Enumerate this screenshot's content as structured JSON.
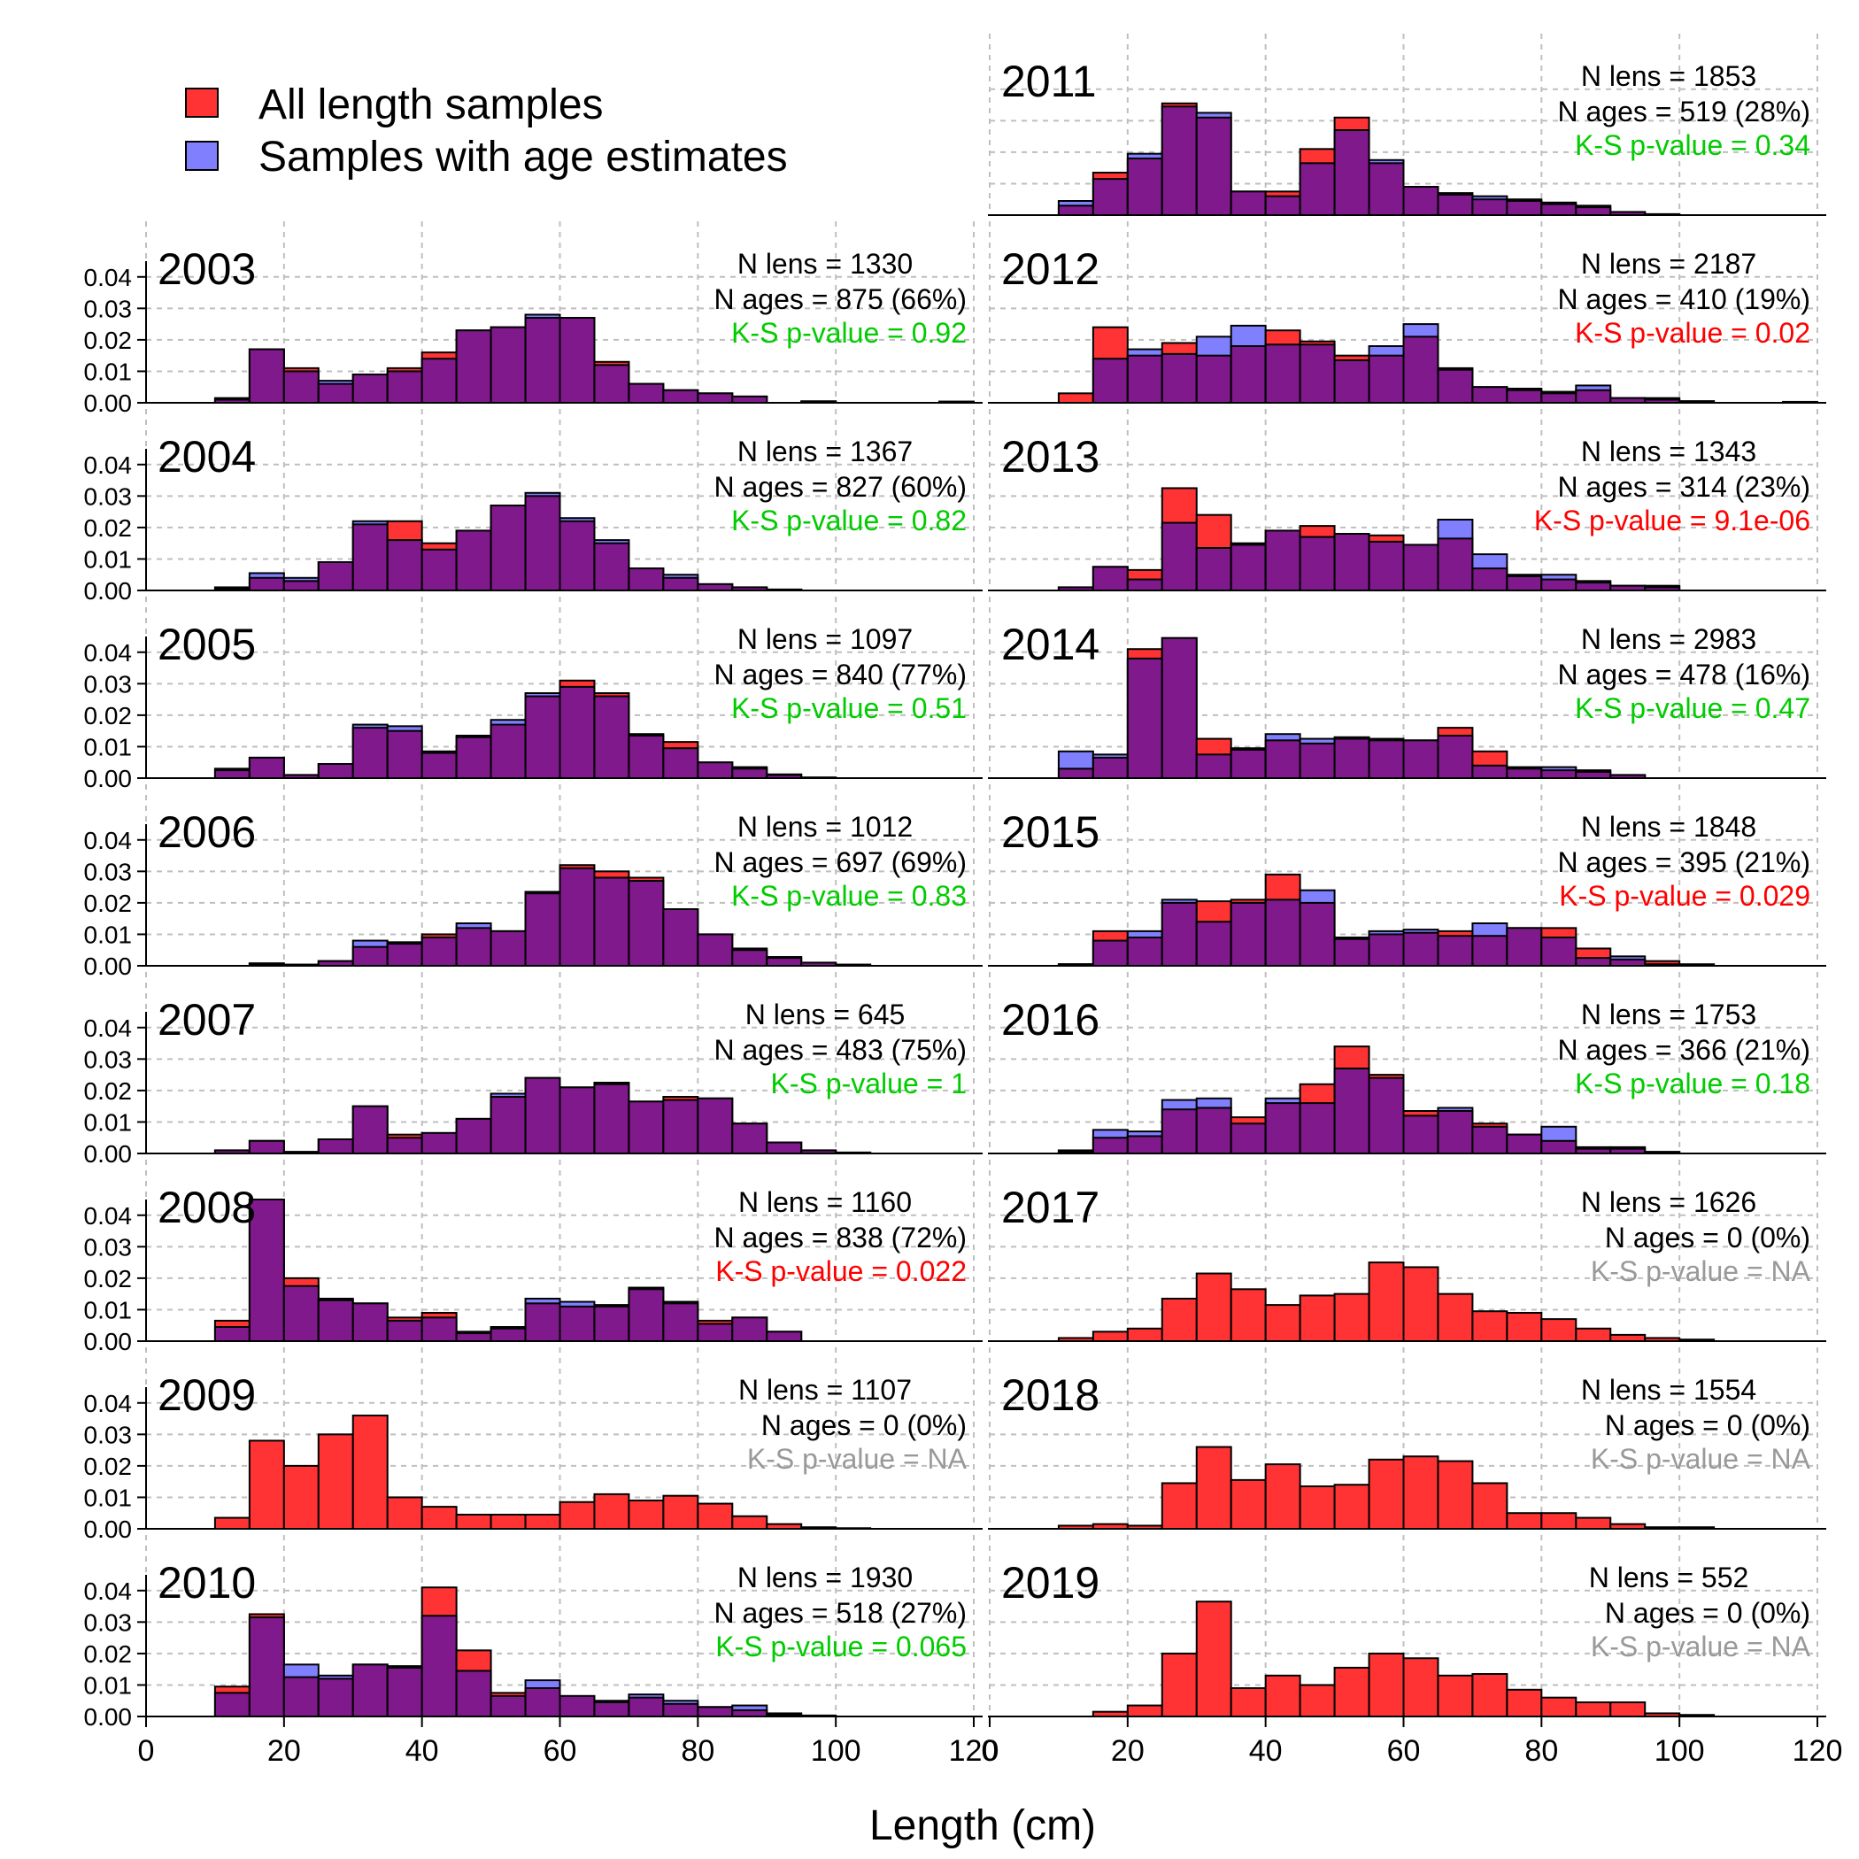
{
  "chart_data": {
    "type": "bar",
    "xlabel": "Length (cm)",
    "ylabel": "",
    "xlim": [
      0,
      120
    ],
    "ylim": [
      0,
      0.045
    ],
    "x_ticks": [
      0,
      20,
      40,
      60,
      80,
      100,
      120
    ],
    "y_ticks": [
      "0.00",
      "0.01",
      "0.02",
      "0.03",
      "0.04"
    ],
    "bin_start": 10,
    "bin_width": 5,
    "grid": true,
    "legend": {
      "placement": "top-left",
      "entries": [
        {
          "label": "All length samples",
          "color": "#ff3333"
        },
        {
          "label": "Samples with age estimates",
          "color": "#8080ff"
        }
      ]
    },
    "colors": {
      "all": "#ff3333",
      "aged": "#8080ff",
      "overlap": "#80198c",
      "ks_significant": "#ff0000",
      "ks_ok": "#00cc00",
      "ks_na": "#999999"
    },
    "panels": [
      {
        "year": "2003",
        "n_lens": "N lens = 1330",
        "n_ages": "N ages = 875 (66%)",
        "ks": "K-S p-value = 0.92",
        "ks_status": "ok",
        "all": [
          0.001,
          0.017,
          0.011,
          0.006,
          0.009,
          0.011,
          0.016,
          0.023,
          0.024,
          0.027,
          0.027,
          0.013,
          0.006,
          0.004,
          0.003,
          0.002,
          0,
          0.0005,
          0,
          0,
          0,
          0.0003
        ],
        "aged": [
          0.0015,
          0.017,
          0.01,
          0.007,
          0.009,
          0.01,
          0.014,
          0.023,
          0.024,
          0.028,
          0.027,
          0.012,
          0.006,
          0.004,
          0.003,
          0.002,
          0,
          0.0004,
          0,
          0,
          0,
          0.0004
        ]
      },
      {
        "year": "2004",
        "n_lens": "N lens = 1367",
        "n_ages": "N ages = 827 (60%)",
        "ks": "K-S p-value = 0.82",
        "ks_status": "ok",
        "all": [
          0.0005,
          0.004,
          0.003,
          0.009,
          0.021,
          0.022,
          0.015,
          0.019,
          0.027,
          0.03,
          0.022,
          0.015,
          0.007,
          0.004,
          0.002,
          0.001,
          0.0003
        ],
        "aged": [
          0.001,
          0.0055,
          0.004,
          0.009,
          0.022,
          0.016,
          0.013,
          0.019,
          0.027,
          0.031,
          0.023,
          0.016,
          0.007,
          0.005,
          0.002,
          0.001,
          0.0003
        ]
      },
      {
        "year": "2005",
        "n_lens": "N lens = 1097",
        "n_ages": "N ages = 840 (77%)",
        "ks": "K-S p-value = 0.51",
        "ks_status": "ok",
        "all": [
          0.0025,
          0.0065,
          0.001,
          0.0045,
          0.016,
          0.015,
          0.008,
          0.013,
          0.017,
          0.026,
          0.031,
          0.027,
          0.014,
          0.0115,
          0.005,
          0.003,
          0.001,
          0.0002
        ],
        "aged": [
          0.003,
          0.0065,
          0.001,
          0.0045,
          0.017,
          0.0165,
          0.0085,
          0.0135,
          0.0185,
          0.027,
          0.029,
          0.026,
          0.0135,
          0.0095,
          0.005,
          0.0035,
          0.0012,
          0.0002
        ]
      },
      {
        "year": "2006",
        "n_lens": "N lens = 1012",
        "n_ages": "N ages = 697 (69%)",
        "ks": "K-S p-value = 0.83",
        "ks_status": "ok",
        "all": [
          0,
          0.0005,
          0.0003,
          0.0015,
          0.006,
          0.007,
          0.01,
          0.012,
          0.011,
          0.023,
          0.032,
          0.03,
          0.028,
          0.018,
          0.01,
          0.005,
          0.0025,
          0.001,
          0.0003
        ],
        "aged": [
          0,
          0.0008,
          0.0004,
          0.0015,
          0.008,
          0.0075,
          0.009,
          0.0135,
          0.011,
          0.0235,
          0.031,
          0.028,
          0.027,
          0.018,
          0.01,
          0.0055,
          0.0028,
          0.001,
          0.0004
        ]
      },
      {
        "year": "2007",
        "n_lens": "N lens = 645",
        "n_ages": "N ages = 483 (75%)",
        "ks": "K-S p-value = 1",
        "ks_status": "ok",
        "all": [
          0.001,
          0.004,
          0.0005,
          0.0045,
          0.015,
          0.006,
          0.0065,
          0.011,
          0.018,
          0.024,
          0.021,
          0.0225,
          0.0165,
          0.018,
          0.0175,
          0.0095,
          0.0035,
          0.001,
          0.0003
        ],
        "aged": [
          0.001,
          0.004,
          0.0005,
          0.0045,
          0.015,
          0.005,
          0.0065,
          0.011,
          0.019,
          0.024,
          0.021,
          0.022,
          0.0165,
          0.017,
          0.0175,
          0.0095,
          0.0035,
          0.001,
          0.0003
        ]
      },
      {
        "year": "2008",
        "n_lens": "N lens = 1160",
        "n_ages": "N ages = 838 (72%)",
        "ks": "K-S p-value = 0.022",
        "ks_status": "significant",
        "all": [
          0.0065,
          0.047,
          0.02,
          0.013,
          0.012,
          0.0075,
          0.009,
          0.0025,
          0.004,
          0.012,
          0.011,
          0.011,
          0.017,
          0.012,
          0.0065,
          0.0075,
          0.003
        ],
        "aged": [
          0.0045,
          0.047,
          0.0175,
          0.0135,
          0.012,
          0.0065,
          0.0075,
          0.003,
          0.0045,
          0.0135,
          0.0125,
          0.0115,
          0.0165,
          0.0125,
          0.0055,
          0.0075,
          0.003
        ]
      },
      {
        "year": "2009",
        "n_lens": "N lens = 1107",
        "n_ages": "N ages = 0 (0%)",
        "ks": "K-S p-value = NA",
        "ks_status": "na",
        "all": [
          0.0035,
          0.028,
          0.02,
          0.03,
          0.036,
          0.01,
          0.007,
          0.0045,
          0.0045,
          0.0045,
          0.0085,
          0.011,
          0.009,
          0.0105,
          0.008,
          0.004,
          0.0015,
          0.0005,
          0.0002
        ],
        "aged": []
      },
      {
        "year": "2010",
        "n_lens": "N lens = 1930",
        "n_ages": "N ages = 518 (27%)",
        "ks": "K-S p-value = 0.065",
        "ks_status": "ok",
        "all": [
          0.0095,
          0.0325,
          0.0125,
          0.012,
          0.0165,
          0.016,
          0.041,
          0.021,
          0.0075,
          0.009,
          0.0065,
          0.0045,
          0.006,
          0.004,
          0.003,
          0.002,
          0.0005,
          0.0003
        ],
        "aged": [
          0.0075,
          0.0315,
          0.0165,
          0.013,
          0.0165,
          0.0155,
          0.032,
          0.0145,
          0.0065,
          0.0115,
          0.0065,
          0.005,
          0.007,
          0.005,
          0.003,
          0.0035,
          0.001,
          0.0003
        ]
      },
      {
        "year": "2011",
        "n_lens": "N lens = 1853",
        "n_ages": "N ages = 519 (28%)",
        "ks": "K-S p-value = 0.34",
        "ks_status": "ok",
        "all": [
          0.003,
          0.0135,
          0.018,
          0.0355,
          0.031,
          0.0075,
          0.0075,
          0.021,
          0.031,
          0.0165,
          0.009,
          0.0065,
          0.005,
          0.0045,
          0.0035,
          0.0025,
          0.001,
          0.0003
        ],
        "aged": [
          0.0045,
          0.0115,
          0.0195,
          0.0345,
          0.0325,
          0.0075,
          0.006,
          0.0165,
          0.027,
          0.0175,
          0.009,
          0.007,
          0.006,
          0.005,
          0.004,
          0.003,
          0.001,
          0.0003
        ]
      },
      {
        "year": "2012",
        "n_lens": "N lens = 2187",
        "n_ages": "N ages = 410 (19%)",
        "ks": "K-S p-value = 0.02",
        "ks_status": "significant",
        "all": [
          0.003,
          0.024,
          0.015,
          0.019,
          0.015,
          0.018,
          0.023,
          0.0195,
          0.015,
          0.015,
          0.021,
          0.011,
          0.005,
          0.004,
          0.003,
          0.004,
          0.0015,
          0.001,
          0.0005,
          0,
          0,
          0.0003
        ],
        "aged": [
          0,
          0.014,
          0.017,
          0.0155,
          0.021,
          0.0245,
          0.0185,
          0.0185,
          0.0135,
          0.018,
          0.025,
          0.0105,
          0.005,
          0.0045,
          0.0035,
          0.0055,
          0.0015,
          0.0015,
          0.0005,
          0,
          0,
          0
        ]
      },
      {
        "year": "2013",
        "n_lens": "N lens = 1343",
        "n_ages": "N ages = 314 (23%)",
        "ks": "K-S p-value = 9.1e-06",
        "ks_status": "significant",
        "all": [
          0.001,
          0.0075,
          0.0065,
          0.0325,
          0.024,
          0.0145,
          0.019,
          0.0205,
          0.018,
          0.0175,
          0.0145,
          0.0165,
          0.007,
          0.0045,
          0.0035,
          0.0025,
          0.0015,
          0.001
        ],
        "aged": [
          0.001,
          0.0075,
          0.0035,
          0.0215,
          0.0135,
          0.015,
          0.019,
          0.017,
          0.018,
          0.0155,
          0.0145,
          0.0225,
          0.0115,
          0.005,
          0.005,
          0.003,
          0.0015,
          0.0015
        ]
      },
      {
        "year": "2014",
        "n_lens": "N lens = 2983",
        "n_ages": "N ages = 478 (16%)",
        "ks": "K-S p-value = 0.47",
        "ks_status": "ok",
        "all": [
          0.003,
          0.0065,
          0.041,
          0.0445,
          0.0125,
          0.009,
          0.012,
          0.011,
          0.0125,
          0.012,
          0.012,
          0.016,
          0.0085,
          0.0035,
          0.0025,
          0.0025,
          0.001
        ],
        "aged": [
          0.0085,
          0.0075,
          0.038,
          0.0445,
          0.0075,
          0.0095,
          0.014,
          0.0125,
          0.013,
          0.0125,
          0.012,
          0.0135,
          0.004,
          0.003,
          0.0035,
          0.002,
          0.001
        ]
      },
      {
        "year": "2015",
        "n_lens": "N lens = 1848",
        "n_ages": "N ages = 395 (21%)",
        "ks": "K-S p-value = 0.029",
        "ks_status": "significant",
        "all": [
          0.0005,
          0.011,
          0.009,
          0.02,
          0.0205,
          0.021,
          0.029,
          0.02,
          0.0085,
          0.01,
          0.0105,
          0.011,
          0.0095,
          0.012,
          0.012,
          0.0055,
          0.002,
          0.0015,
          0.0005
        ],
        "aged": [
          0.0005,
          0.008,
          0.011,
          0.021,
          0.014,
          0.02,
          0.021,
          0.024,
          0.009,
          0.011,
          0.0115,
          0.0095,
          0.0135,
          0.012,
          0.009,
          0.0025,
          0.003,
          0.0005
        ]
      },
      {
        "year": "2016",
        "n_lens": "N lens = 1753",
        "n_ages": "N ages = 366 (21%)",
        "ks": "K-S p-value = 0.18",
        "ks_status": "ok",
        "all": [
          0.001,
          0.005,
          0.0055,
          0.014,
          0.0145,
          0.0115,
          0.016,
          0.022,
          0.034,
          0.025,
          0.0135,
          0.0135,
          0.0095,
          0.006,
          0.004,
          0.002,
          0.0015,
          0.0005
        ],
        "aged": [
          0.0005,
          0.0075,
          0.007,
          0.017,
          0.0175,
          0.0095,
          0.0175,
          0.016,
          0.027,
          0.024,
          0.012,
          0.0145,
          0.0085,
          0.006,
          0.0085,
          0.0015,
          0.002,
          0.0005
        ]
      },
      {
        "year": "2017",
        "n_lens": "N lens = 1626",
        "n_ages": "N ages = 0 (0%)",
        "ks": "K-S p-value = NA",
        "ks_status": "na",
        "all": [
          0.001,
          0.003,
          0.004,
          0.0135,
          0.0215,
          0.0165,
          0.0115,
          0.0145,
          0.015,
          0.025,
          0.0235,
          0.015,
          0.0095,
          0.009,
          0.007,
          0.004,
          0.002,
          0.001,
          0.0005
        ],
        "aged": []
      },
      {
        "year": "2018",
        "n_lens": "N lens = 1554",
        "n_ages": "N ages = 0 (0%)",
        "ks": "K-S p-value = NA",
        "ks_status": "na",
        "all": [
          0.001,
          0.0015,
          0.001,
          0.0145,
          0.026,
          0.0155,
          0.0205,
          0.0135,
          0.014,
          0.022,
          0.023,
          0.0215,
          0.0145,
          0.005,
          0.005,
          0.0035,
          0.0015,
          0.0005,
          0.0005
        ],
        "aged": []
      },
      {
        "year": "2019",
        "n_lens": "N lens = 552",
        "n_ages": "N ages = 0 (0%)",
        "ks": "K-S p-value = NA",
        "ks_status": "na",
        "all": [
          0,
          0.0015,
          0.0035,
          0.02,
          0.0365,
          0.009,
          0.013,
          0.01,
          0.0155,
          0.02,
          0.0185,
          0.013,
          0.0135,
          0.0085,
          0.006,
          0.0045,
          0.0045,
          0.001,
          0.0005
        ],
        "aged": []
      }
    ]
  }
}
